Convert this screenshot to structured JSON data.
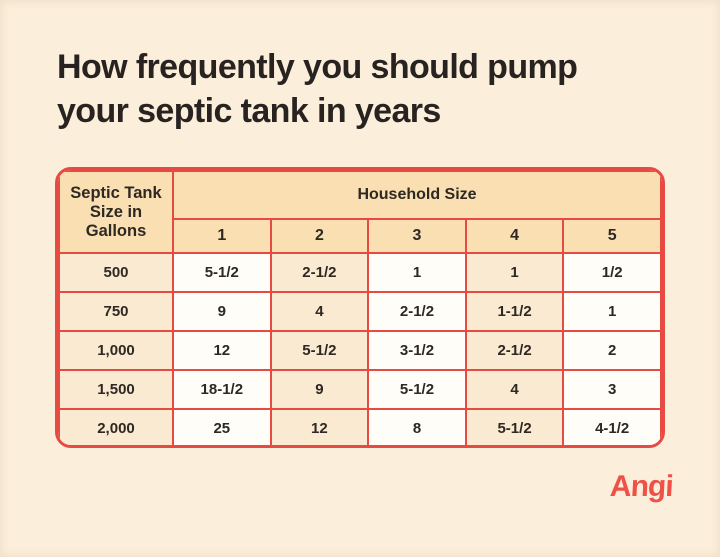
{
  "page": {
    "title_lines": [
      "How frequently you should pump",
      "your septic tank in years"
    ],
    "brand": "Angi"
  },
  "colors": {
    "page_background": "#FBEEDA",
    "header_cell": "#FADFB2",
    "peach_cell": "#FAEAD1",
    "white_cell": "#FEFDF8",
    "table_border_red": "#E64A43",
    "title_text": "#282321",
    "brand_red": "#EF5147"
  },
  "chart_data": {
    "type": "table",
    "title": "How frequently you should pump your septic tank in years",
    "units": "years",
    "row_header": {
      "label": "Septic Tank Size in Gallons",
      "lines": [
        "Septic Tank",
        "Size in",
        "Gallons"
      ]
    },
    "column_group_header": "Household Size",
    "columns": [
      "1",
      "2",
      "3",
      "4",
      "5"
    ],
    "rows": [
      {
        "label": "500",
        "values": [
          "5-1/2",
          "2-1/2",
          "1",
          "1",
          "1/2"
        ]
      },
      {
        "label": "750",
        "values": [
          "9",
          "4",
          "2-1/2",
          "1-1/2",
          "1"
        ]
      },
      {
        "label": "1,000",
        "values": [
          "12",
          "5-1/2",
          "3-1/2",
          "2-1/2",
          "2"
        ]
      },
      {
        "label": "1,500",
        "values": [
          "18-1/2",
          "9",
          "5-1/2",
          "4",
          "3"
        ]
      },
      {
        "label": "2,000",
        "values": [
          "25",
          "12",
          "8",
          "5-1/2",
          "4-1/2"
        ]
      }
    ]
  }
}
